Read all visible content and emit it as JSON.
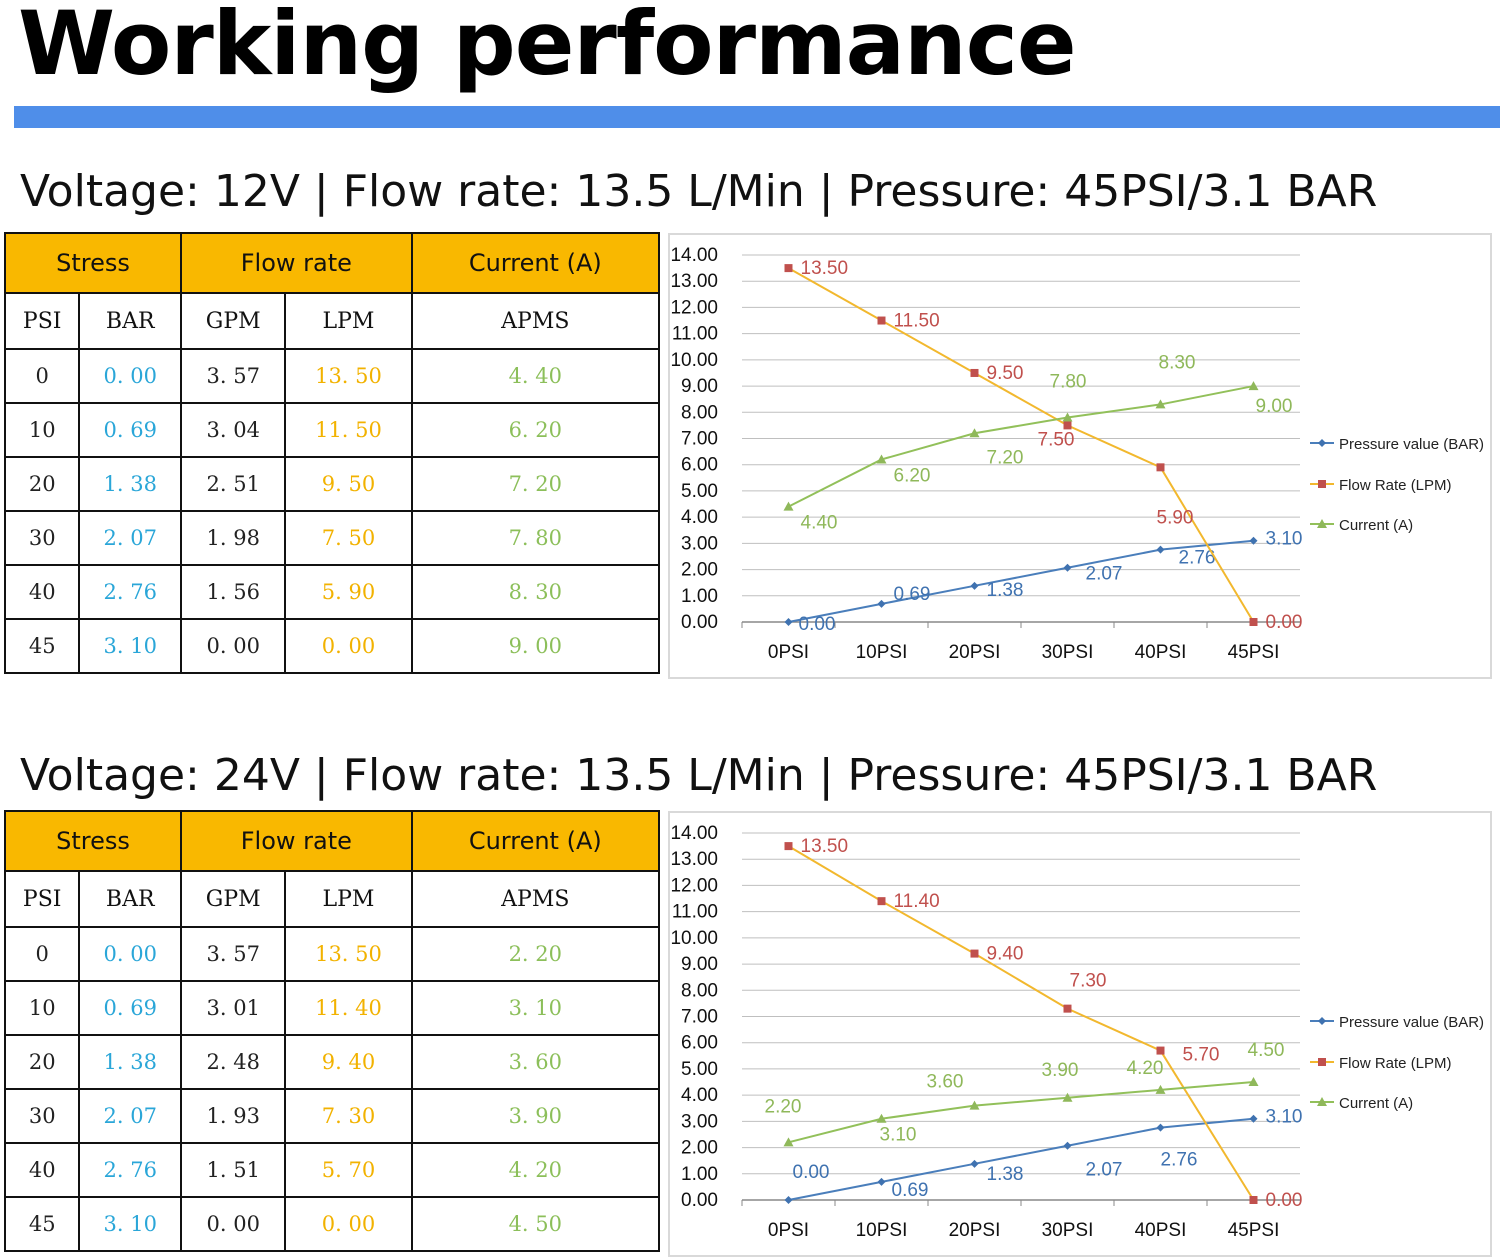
{
  "page": {
    "title": "Working performance",
    "accent_color": "#4f8ee9"
  },
  "table_headers": {
    "stress": "Stress",
    "flow_rate": "Flow rate",
    "current": "Current (A)",
    "psi": "PSI",
    "bar": "BAR",
    "gpm": "GPM",
    "lpm": "LPM",
    "apms": "APMS"
  },
  "sections": [
    {
      "subtitle": "Voltage: 12V | Flow rate: 13.5 L/Min | Pressure: 45PSI/3.1 BAR",
      "rows": [
        {
          "psi": "0",
          "bar": "0. 00",
          "gpm": "3. 57",
          "lpm": "13. 50",
          "amp": "4. 40"
        },
        {
          "psi": "10",
          "bar": "0. 69",
          "gpm": "3. 04",
          "lpm": "11. 50",
          "amp": "6. 20"
        },
        {
          "psi": "20",
          "bar": "1. 38",
          "gpm": "2. 51",
          "lpm": "9. 50",
          "amp": "7. 20"
        },
        {
          "psi": "30",
          "bar": "2. 07",
          "gpm": "1. 98",
          "lpm": "7. 50",
          "amp": "7. 80"
        },
        {
          "psi": "40",
          "bar": "2. 76",
          "gpm": "1. 56",
          "lpm": "5. 90",
          "amp": "8. 30"
        },
        {
          "psi": "45",
          "bar": "3. 10",
          "gpm": "0. 00",
          "lpm": "0. 00",
          "amp": "9. 00"
        }
      ]
    },
    {
      "subtitle": "Voltage: 24V | Flow rate: 13.5 L/Min | Pressure: 45PSI/3.1 BAR",
      "rows": [
        {
          "psi": "0",
          "bar": "0. 00",
          "gpm": "3. 57",
          "lpm": "13. 50",
          "amp": "2. 20"
        },
        {
          "psi": "10",
          "bar": "0. 69",
          "gpm": "3. 01",
          "lpm": "11. 40",
          "amp": "3. 10"
        },
        {
          "psi": "20",
          "bar": "1. 38",
          "gpm": "2. 48",
          "lpm": "9. 40",
          "amp": "3. 60"
        },
        {
          "psi": "30",
          "bar": "2. 07",
          "gpm": "1. 93",
          "lpm": "7. 30",
          "amp": "3. 90"
        },
        {
          "psi": "40",
          "bar": "2. 76",
          "gpm": "1. 51",
          "lpm": "5. 70",
          "amp": "4. 20"
        },
        {
          "psi": "45",
          "bar": "3. 10",
          "gpm": "0. 00",
          "lpm": "0. 00",
          "amp": "4. 50"
        }
      ]
    }
  ],
  "chart_data": [
    {
      "type": "line",
      "title": "",
      "categories": [
        "0PSI",
        "10PSI",
        "20PSI",
        "30PSI",
        "40PSI",
        "45PSI"
      ],
      "ylim": [
        0,
        14
      ],
      "y_ticks": [
        "0.00",
        "1.00",
        "2.00",
        "3.00",
        "4.00",
        "5.00",
        "6.00",
        "7.00",
        "8.00",
        "9.00",
        "10.00",
        "11.00",
        "12.00",
        "13.00",
        "14.00"
      ],
      "grid": true,
      "legend": "right",
      "series": [
        {
          "name": "Pressure value (BAR)",
          "color": "#4a7ebb",
          "marker": "diamond",
          "values": [
            0.0,
            0.69,
            1.38,
            2.07,
            2.76,
            3.1
          ],
          "labels": [
            "0.00",
            "0.69",
            "1.38",
            "2.07",
            "2.76",
            "3.10"
          ]
        },
        {
          "name": "Flow Rate (LPM)",
          "color": "#f2b82e",
          "marker": "square",
          "values": [
            13.5,
            11.5,
            9.5,
            7.5,
            5.9,
            0.0
          ],
          "labels": [
            "13.50",
            "11.50",
            "9.50",
            "7.50",
            "5.90",
            "0.00"
          ]
        },
        {
          "name": "Current (A)",
          "color": "#92c05a",
          "marker": "triangle",
          "values": [
            4.4,
            6.2,
            7.2,
            7.8,
            8.3,
            9.0
          ],
          "labels": [
            "4.40",
            "6.20",
            "7.20",
            "7.80",
            "8.30",
            "9.00"
          ]
        }
      ]
    },
    {
      "type": "line",
      "title": "",
      "categories": [
        "0PSI",
        "10PSI",
        "20PSI",
        "30PSI",
        "40PSI",
        "45PSI"
      ],
      "ylim": [
        0,
        14
      ],
      "y_ticks": [
        "0.00",
        "1.00",
        "2.00",
        "3.00",
        "4.00",
        "5.00",
        "6.00",
        "7.00",
        "8.00",
        "9.00",
        "10.00",
        "11.00",
        "12.00",
        "13.00",
        "14.00"
      ],
      "grid": true,
      "legend": "right",
      "series": [
        {
          "name": "Pressure value (BAR)",
          "color": "#4a7ebb",
          "marker": "diamond",
          "values": [
            0.0,
            0.69,
            1.38,
            2.07,
            2.76,
            3.1
          ],
          "labels": [
            "0.00",
            "0.69",
            "1.38",
            "2.07",
            "2.76",
            "3.10"
          ]
        },
        {
          "name": "Flow Rate (LPM)",
          "color": "#f2b82e",
          "marker": "square",
          "values": [
            13.5,
            11.4,
            9.4,
            7.3,
            5.7,
            0.0
          ],
          "labels": [
            "13.50",
            "11.40",
            "9.40",
            "7.30",
            "5.70",
            "0.00"
          ]
        },
        {
          "name": "Current (A)",
          "color": "#92c05a",
          "marker": "triangle",
          "values": [
            2.2,
            3.1,
            3.6,
            3.9,
            4.2,
            4.5
          ],
          "labels": [
            "2.20",
            "3.10",
            "3.60",
            "3.90",
            "4.20",
            "4.50"
          ]
        }
      ]
    }
  ]
}
